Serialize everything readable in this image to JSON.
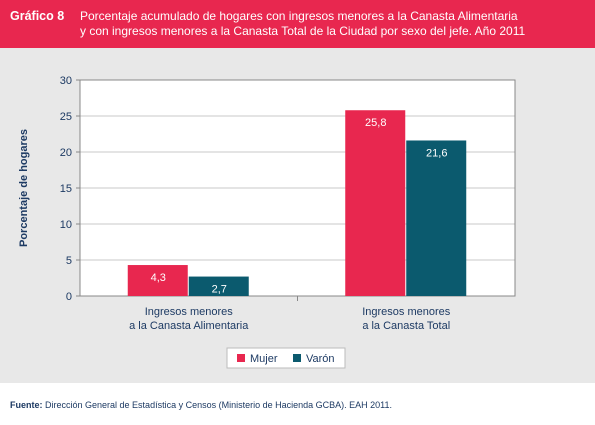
{
  "header": {
    "label": "Gráfico 8",
    "title_line1": "Porcentaje acumulado de hogares con ingresos menores a la Canasta Alimentaria",
    "title_line2": "y con ingresos menores a la Canasta Total de la Ciudad por sexo del jefe. Año 2011"
  },
  "source": {
    "prefix": "Fuente:",
    "text": "Dirección General de Estadística y Censos (Ministerio de Hacienda GCBA). EAH 2011."
  },
  "colors": {
    "header_bg": "#e8274f",
    "mujer": "#e8274f",
    "varon": "#0b5a6e",
    "axis_text": "#1d3a63"
  },
  "chart_data": {
    "type": "bar",
    "categories": [
      [
        "Ingresos menores",
        "a la Canasta Alimentaria"
      ],
      [
        "Ingresos menores",
        "a la Canasta Total"
      ]
    ],
    "series": [
      {
        "name": "Mujer",
        "values": [
          4.3,
          25.8
        ],
        "labels": [
          "4,3",
          "25,8"
        ],
        "color": "#e8274f"
      },
      {
        "name": "Varón",
        "values": [
          2.7,
          21.6
        ],
        "labels": [
          "2,7",
          "21,6"
        ],
        "color": "#0b5a6e"
      }
    ],
    "ylabel": "Porcentaje de hogares",
    "ylim": [
      0,
      30
    ],
    "yticks": [
      0,
      5,
      10,
      15,
      20,
      25,
      30
    ],
    "grid": true,
    "legend": "bottom-center"
  }
}
